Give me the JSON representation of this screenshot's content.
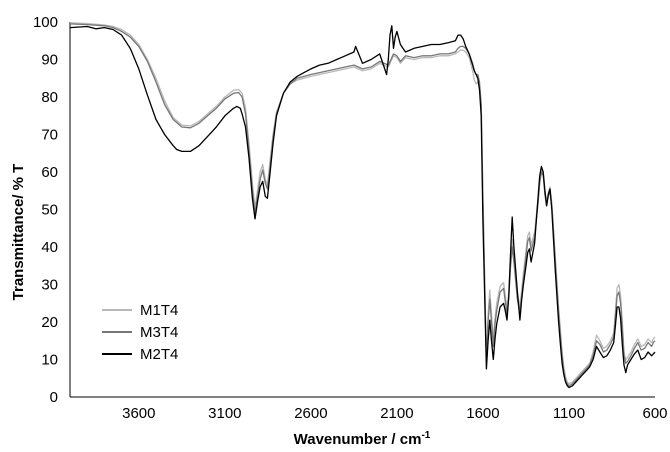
{
  "chart_data": {
    "type": "line",
    "title": "",
    "xlabel": "Wavenumber / cm",
    "xlabel_superscript": "-1",
    "ylabel": "Transmittance/ % T",
    "x_reversed": true,
    "xlim": [
      4000,
      600
    ],
    "ylim": [
      0,
      100
    ],
    "x_ticks": [
      "3600",
      "3100",
      "2600",
      "2100",
      "1600",
      "1100",
      "600"
    ],
    "y_ticks": [
      "0",
      "10",
      "20",
      "30",
      "40",
      "50",
      "60",
      "70",
      "80",
      "90",
      "100"
    ],
    "grid": false,
    "legend_position": "bottom-left",
    "series": [
      {
        "name": "M1T4",
        "color": "#b8b8b8",
        "x": [
          4000,
          3900,
          3800,
          3750,
          3700,
          3650,
          3600,
          3550,
          3500,
          3450,
          3400,
          3350,
          3300,
          3250,
          3200,
          3150,
          3100,
          3050,
          3020,
          3000,
          2980,
          2960,
          2940,
          2925,
          2910,
          2895,
          2880,
          2865,
          2853,
          2840,
          2820,
          2800,
          2760,
          2720,
          2680,
          2640,
          2600,
          2550,
          2500,
          2450,
          2400,
          2350,
          2300,
          2250,
          2200,
          2150,
          2120,
          2100,
          2080,
          2050,
          2000,
          1950,
          1900,
          1850,
          1800,
          1760,
          1745,
          1730,
          1715,
          1700,
          1680,
          1660,
          1650,
          1640,
          1630,
          1620,
          1610,
          1600,
          1580,
          1570,
          1560,
          1550,
          1540,
          1530,
          1520,
          1500,
          1480,
          1470,
          1460,
          1450,
          1440,
          1430,
          1420,
          1400,
          1385,
          1375,
          1365,
          1350,
          1340,
          1330,
          1320,
          1300,
          1280,
          1270,
          1260,
          1250,
          1240,
          1230,
          1220,
          1210,
          1200,
          1190,
          1180,
          1170,
          1160,
          1150,
          1140,
          1130,
          1120,
          1110,
          1100,
          1080,
          1060,
          1040,
          1020,
          1000,
          980,
          960,
          940,
          920,
          900,
          880,
          860,
          840,
          830,
          820,
          810,
          800,
          790,
          780,
          770,
          760,
          740,
          720,
          700,
          680,
          660,
          640,
          620,
          610,
          600
        ],
        "y": [
          99.8,
          99.6,
          99.2,
          98.8,
          98.0,
          96.5,
          94.0,
          90.0,
          85.0,
          79.0,
          74.5,
          72.5,
          72.3,
          73.5,
          75.5,
          77.5,
          80.0,
          81.8,
          82.0,
          81.0,
          77.0,
          68.0,
          57.0,
          50.5,
          55.0,
          60.0,
          62.0,
          58.0,
          56.5,
          62.0,
          70.0,
          76.0,
          81.0,
          83.5,
          84.5,
          85.0,
          85.5,
          86.0,
          86.5,
          87.0,
          87.5,
          88.0,
          87.0,
          87.5,
          89.0,
          88.0,
          91.0,
          90.5,
          89.0,
          90.5,
          90.0,
          90.5,
          90.5,
          91.0,
          91.0,
          91.5,
          92.0,
          92.5,
          92.5,
          92.0,
          90.5,
          87.0,
          84.5,
          83.5,
          84.0,
          82.5,
          78.0,
          55.0,
          10.0,
          22.0,
          28.5,
          22.0,
          15.0,
          21.0,
          25.0,
          29.5,
          30.5,
          27.0,
          23.5,
          28.0,
          36.0,
          42.0,
          38.0,
          28.0,
          24.0,
          28.5,
          33.0,
          39.0,
          43.0,
          44.0,
          40.5,
          44.0,
          53.0,
          58.0,
          60.5,
          60.0,
          55.0,
          52.0,
          54.5,
          56.0,
          52.0,
          45.0,
          38.0,
          31.0,
          24.0,
          18.0,
          12.0,
          8.0,
          5.5,
          4.0,
          3.5,
          4.0,
          5.0,
          6.0,
          7.0,
          8.0,
          9.0,
          12.0,
          16.5,
          15.0,
          13.0,
          13.5,
          15.0,
          17.0,
          23.0,
          29.0,
          30.0,
          27.0,
          20.0,
          12.0,
          10.0,
          10.5,
          12.0,
          14.0,
          15.5,
          13.5,
          14.0,
          15.5,
          14.5,
          15.5,
          16.0
        ]
      },
      {
        "name": "M3T4",
        "color": "#777777",
        "x": [
          4000,
          3900,
          3800,
          3750,
          3700,
          3650,
          3600,
          3550,
          3500,
          3450,
          3400,
          3350,
          3300,
          3250,
          3200,
          3150,
          3100,
          3050,
          3020,
          3000,
          2980,
          2960,
          2940,
          2925,
          2910,
          2895,
          2880,
          2865,
          2853,
          2840,
          2820,
          2800,
          2760,
          2720,
          2680,
          2640,
          2600,
          2550,
          2500,
          2450,
          2400,
          2350,
          2300,
          2250,
          2200,
          2150,
          2120,
          2100,
          2080,
          2050,
          2000,
          1950,
          1900,
          1850,
          1800,
          1760,
          1745,
          1730,
          1715,
          1700,
          1680,
          1660,
          1650,
          1640,
          1630,
          1620,
          1610,
          1600,
          1580,
          1570,
          1560,
          1550,
          1540,
          1530,
          1520,
          1500,
          1480,
          1470,
          1460,
          1450,
          1440,
          1430,
          1420,
          1400,
          1385,
          1375,
          1365,
          1350,
          1340,
          1330,
          1320,
          1300,
          1280,
          1270,
          1260,
          1250,
          1240,
          1230,
          1220,
          1210,
          1200,
          1190,
          1180,
          1170,
          1160,
          1150,
          1140,
          1130,
          1120,
          1110,
          1100,
          1080,
          1060,
          1040,
          1020,
          1000,
          980,
          960,
          940,
          920,
          900,
          880,
          860,
          840,
          830,
          820,
          810,
          800,
          790,
          780,
          770,
          760,
          740,
          720,
          700,
          680,
          660,
          640,
          620,
          610,
          600
        ],
        "y": [
          99.5,
          99.3,
          99.0,
          98.5,
          97.5,
          96.0,
          93.5,
          89.5,
          84.0,
          78.0,
          74.0,
          72.0,
          71.8,
          73.0,
          75.0,
          77.0,
          79.5,
          81.0,
          81.2,
          80.0,
          75.5,
          66.0,
          55.0,
          49.0,
          53.5,
          58.0,
          60.5,
          57.0,
          55.5,
          60.0,
          69.0,
          75.5,
          81.0,
          83.5,
          85.0,
          85.5,
          86.0,
          86.5,
          87.0,
          87.5,
          88.0,
          88.5,
          87.5,
          88.0,
          89.5,
          88.5,
          91.5,
          91.0,
          89.5,
          91.0,
          90.5,
          91.0,
          91.0,
          91.5,
          91.5,
          92.0,
          93.0,
          93.5,
          93.5,
          93.0,
          91.5,
          89.0,
          87.0,
          86.0,
          86.0,
          84.0,
          78.0,
          52.0,
          9.0,
          20.0,
          26.0,
          20.0,
          13.5,
          19.5,
          23.0,
          28.0,
          29.0,
          25.5,
          22.0,
          26.5,
          34.5,
          40.0,
          36.0,
          26.0,
          22.5,
          27.0,
          31.5,
          37.5,
          41.5,
          42.5,
          39.0,
          42.5,
          51.5,
          57.0,
          60.0,
          59.0,
          54.0,
          51.0,
          53.5,
          55.0,
          51.0,
          44.0,
          36.5,
          29.5,
          22.5,
          16.5,
          11.0,
          7.0,
          4.5,
          3.5,
          3.0,
          3.5,
          4.5,
          5.5,
          6.5,
          7.5,
          8.5,
          11.0,
          15.0,
          14.0,
          12.0,
          12.5,
          14.0,
          16.0,
          21.5,
          27.0,
          28.0,
          25.0,
          18.5,
          11.0,
          9.0,
          9.5,
          11.0,
          13.0,
          14.5,
          12.5,
          13.0,
          14.5,
          13.5,
          14.5,
          15.0
        ]
      },
      {
        "name": "M2T4",
        "color": "#000000",
        "x": [
          4000,
          3900,
          3850,
          3800,
          3750,
          3700,
          3650,
          3600,
          3550,
          3500,
          3450,
          3400,
          3380,
          3350,
          3300,
          3250,
          3200,
          3150,
          3100,
          3050,
          3030,
          3010,
          3000,
          2980,
          2960,
          2940,
          2925,
          2910,
          2895,
          2880,
          2865,
          2853,
          2840,
          2820,
          2800,
          2760,
          2720,
          2680,
          2640,
          2600,
          2550,
          2500,
          2450,
          2400,
          2350,
          2340,
          2300,
          2250,
          2200,
          2160,
          2150,
          2140,
          2130,
          2120,
          2110,
          2100,
          2080,
          2050,
          2000,
          1950,
          1900,
          1850,
          1800,
          1760,
          1745,
          1730,
          1715,
          1700,
          1680,
          1660,
          1650,
          1640,
          1630,
          1620,
          1610,
          1600,
          1580,
          1570,
          1560,
          1550,
          1540,
          1530,
          1520,
          1500,
          1480,
          1470,
          1460,
          1450,
          1440,
          1430,
          1420,
          1400,
          1385,
          1375,
          1365,
          1350,
          1340,
          1330,
          1320,
          1300,
          1280,
          1270,
          1260,
          1250,
          1240,
          1230,
          1220,
          1210,
          1200,
          1190,
          1180,
          1170,
          1160,
          1150,
          1140,
          1130,
          1120,
          1110,
          1100,
          1080,
          1060,
          1040,
          1020,
          1000,
          980,
          960,
          940,
          920,
          900,
          880,
          860,
          840,
          830,
          820,
          810,
          800,
          790,
          780,
          770,
          760,
          740,
          720,
          700,
          680,
          660,
          640,
          620,
          610,
          600
        ],
        "y": [
          98.5,
          98.8,
          98.2,
          98.5,
          98.0,
          96.5,
          93.0,
          87.5,
          80.5,
          74.0,
          70.0,
          67.0,
          66.0,
          65.5,
          65.5,
          67.0,
          69.5,
          72.0,
          75.0,
          77.0,
          77.5,
          77.0,
          75.5,
          72.0,
          64.0,
          53.0,
          47.5,
          52.0,
          56.0,
          57.5,
          53.5,
          53.0,
          58.5,
          67.5,
          75.0,
          81.0,
          84.0,
          85.5,
          86.5,
          87.5,
          88.5,
          89.0,
          90.0,
          91.0,
          92.0,
          93.5,
          89.0,
          90.0,
          91.5,
          86.0,
          90.0,
          96.5,
          99.0,
          93.0,
          96.0,
          97.5,
          94.0,
          92.0,
          93.0,
          93.5,
          94.0,
          94.0,
          94.5,
          95.0,
          96.5,
          96.5,
          95.5,
          93.5,
          91.5,
          88.5,
          87.0,
          86.0,
          85.0,
          82.0,
          75.0,
          47.0,
          7.5,
          15.0,
          20.5,
          15.0,
          10.0,
          15.5,
          19.5,
          24.0,
          25.0,
          23.0,
          20.5,
          27.0,
          38.0,
          48.0,
          40.0,
          28.0,
          20.5,
          26.0,
          30.0,
          35.0,
          38.5,
          39.5,
          36.0,
          41.0,
          53.0,
          59.0,
          61.5,
          60.0,
          55.0,
          51.0,
          54.0,
          55.5,
          50.0,
          42.0,
          34.0,
          27.0,
          20.0,
          14.0,
          9.0,
          6.0,
          4.0,
          3.0,
          2.5,
          3.0,
          4.0,
          5.0,
          6.0,
          7.0,
          8.0,
          10.0,
          13.5,
          12.0,
          10.5,
          11.0,
          12.5,
          14.5,
          19.0,
          24.0,
          24.0,
          21.0,
          14.0,
          8.5,
          6.5,
          8.5,
          10.0,
          11.5,
          12.5,
          10.0,
          10.5,
          12.0,
          11.0,
          11.5,
          12.0
        ]
      }
    ]
  }
}
